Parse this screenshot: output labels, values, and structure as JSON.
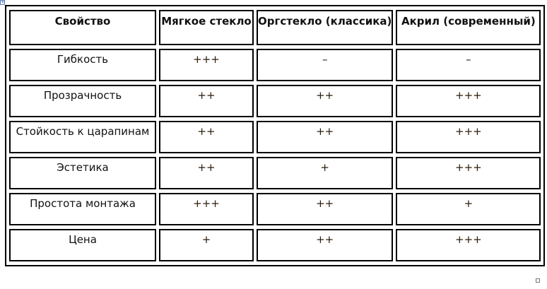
{
  "table": {
    "headers": [
      "Свойство",
      "Мягкое стекло",
      "Оргстекло (классика)",
      "Акрил (современный)"
    ],
    "rows": [
      [
        "Гибкость",
        "+++",
        "–",
        "–"
      ],
      [
        "Прозрачность",
        "++",
        "++",
        "+++"
      ],
      [
        "Стойкость к царапинам",
        "++",
        "++",
        "+++"
      ],
      [
        "Эстетика",
        "++",
        "+",
        "+++"
      ],
      [
        "Простота монтажа",
        "+++",
        "++",
        "+"
      ],
      [
        "Цена",
        "+",
        "++",
        "+++"
      ]
    ]
  }
}
